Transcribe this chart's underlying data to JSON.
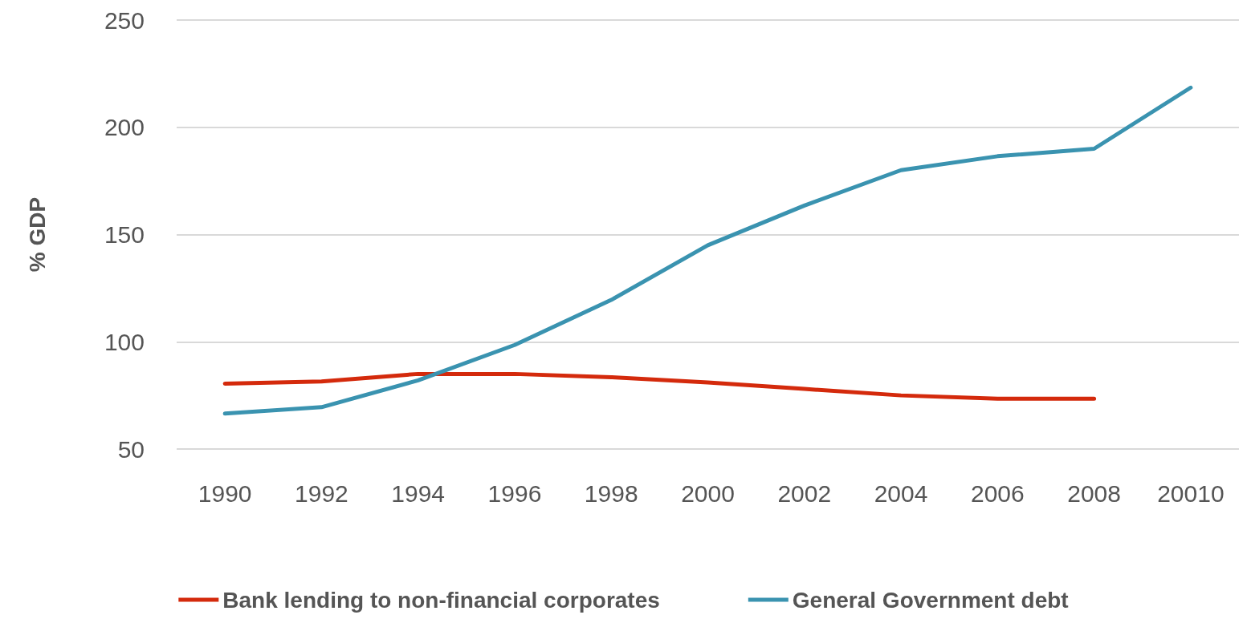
{
  "chart_data": {
    "type": "line",
    "ylabel": "% GDP",
    "categories": [
      "1990",
      "1992",
      "1994",
      "1996",
      "1998",
      "2000",
      "2002",
      "2004",
      "2006",
      "2008",
      "20010"
    ],
    "series": [
      {
        "name": "Bank lending to non-financial corporates",
        "color": "#d42a0c",
        "values": [
          80.5,
          81.5,
          85,
          85,
          83.5,
          81,
          78,
          75,
          73.5,
          73.5,
          null
        ]
      },
      {
        "name": "General Government debt",
        "color": "#3a93b0",
        "values": [
          66.5,
          69.5,
          82,
          98.5,
          119.5,
          145,
          163.5,
          180,
          186.5,
          190,
          218.5
        ]
      }
    ],
    "ylim": [
      50,
      250
    ],
    "yticks": [
      50,
      100,
      150,
      200,
      250
    ],
    "grid": "y",
    "legend": "bottom",
    "marker": "none",
    "line_style": "solid"
  }
}
